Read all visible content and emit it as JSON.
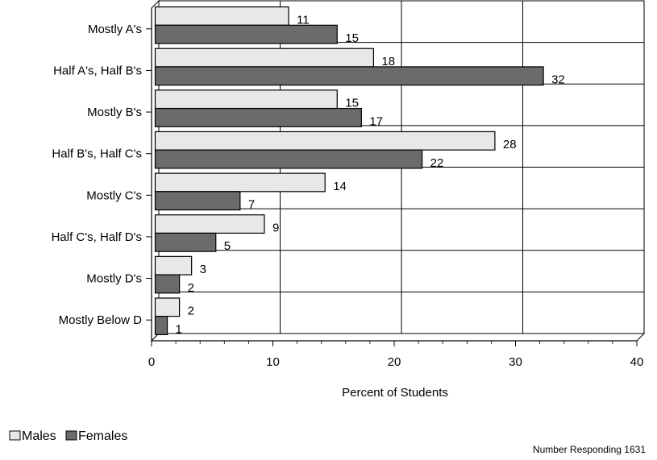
{
  "chart_data": {
    "type": "bar",
    "orientation": "horizontal",
    "categories": [
      "Mostly A's",
      "Half A's, Half B's",
      "Mostly B's",
      "Half B's, Half C's",
      "Mostly C's",
      "Half C's, Half D's",
      "Mostly D's",
      "Mostly Below D"
    ],
    "series": [
      {
        "name": "Males",
        "values": [
          11,
          18,
          15,
          28,
          14,
          9,
          3,
          2
        ],
        "color": "#e8e8e8"
      },
      {
        "name": "Females",
        "values": [
          15,
          32,
          17,
          22,
          7,
          5,
          2,
          1
        ],
        "color": "#6b6b6b"
      }
    ],
    "xlabel": "Percent of Students",
    "xlim": [
      0,
      40
    ],
    "xticks": [
      "0",
      "10",
      "20",
      "30",
      "40"
    ],
    "grid": true,
    "legend_position": "bottom-left",
    "note": "Number Responding 1631"
  }
}
